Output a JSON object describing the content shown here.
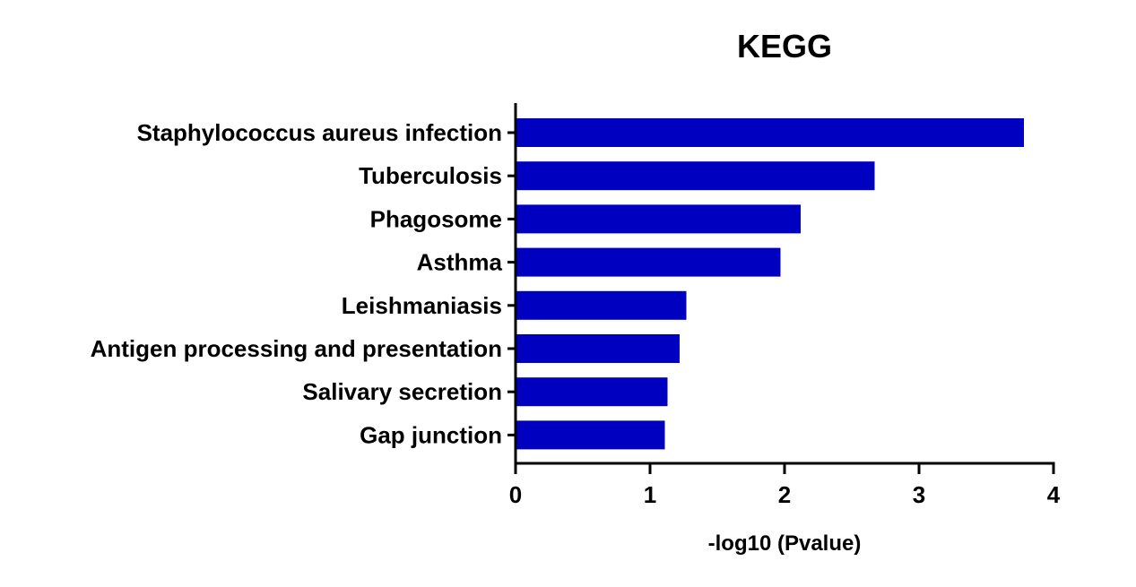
{
  "chart_data": {
    "type": "bar",
    "orientation": "horizontal",
    "title": "KEGG",
    "xlabel": "-log10 (Pvalue)",
    "ylabel": "",
    "categories": [
      "Staphylococcus aureus infection",
      "Tuberculosis",
      "Phagosome",
      "Asthma",
      "Leishmaniasis",
      "Antigen processing and presentation",
      "Salivary secretion",
      "Gap junction"
    ],
    "values": [
      3.78,
      2.67,
      2.12,
      1.97,
      1.27,
      1.22,
      1.13,
      1.11
    ],
    "xlim": [
      0,
      4
    ],
    "xticks": [
      "0",
      "1",
      "2",
      "3",
      "4"
    ],
    "grid": false,
    "legend": "none",
    "bar_color": "#0000c0"
  }
}
